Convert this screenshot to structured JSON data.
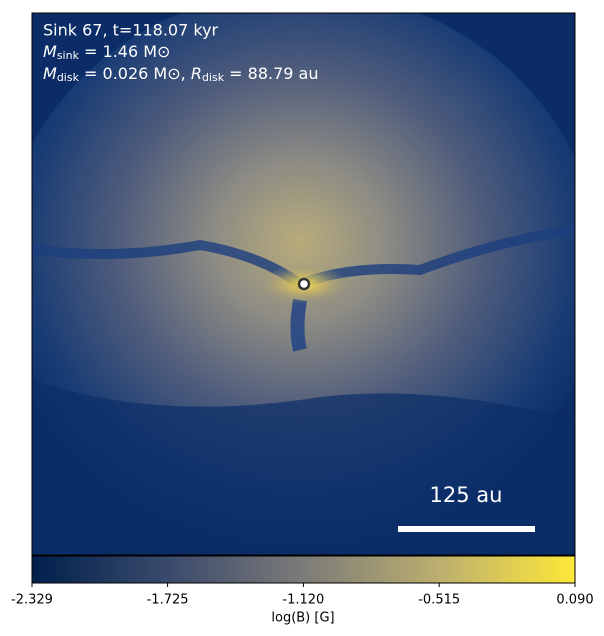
{
  "chart_data": {
    "type": "image",
    "annotations": [
      {
        "text": "Sink 67, t=118.07 kyr"
      },
      {
        "symbol": "M",
        "subscript": "sink",
        "text": " = 1.46 M⊙"
      },
      {
        "symbol": "M",
        "subscript": "disk",
        "text": " = 0.026 M⊙, ",
        "symbol2": "R",
        "subscript2": "disk",
        "text2": " = 88.79 au"
      }
    ],
    "scale_bar_label": "125 au",
    "colorbar": {
      "label": "log(B) [G]",
      "lim": [
        -2.329,
        0.09
      ],
      "ticks": [
        -2.329,
        -1.725,
        {
          "value": -1.12,
          "label": "-1.120"
        },
        -0.515,
        {
          "value": 0.09,
          "label": "0.090"
        }
      ]
    }
  }
}
